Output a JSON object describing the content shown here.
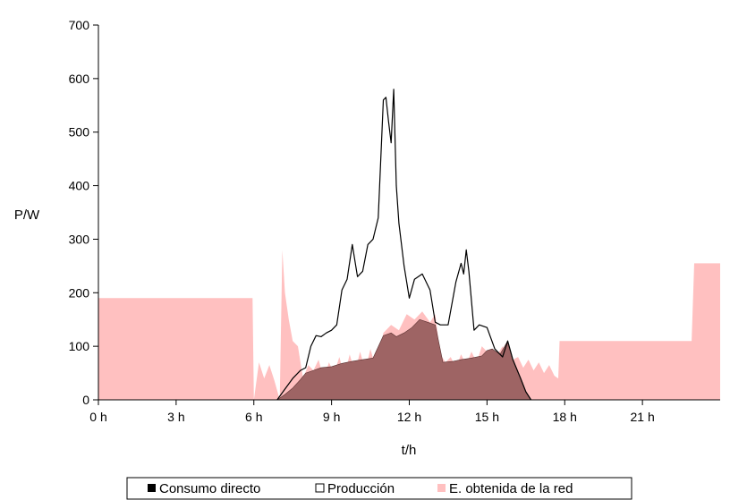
{
  "chart_data": {
    "type": "area",
    "xlabel": "t/h",
    "ylabel": "P/W",
    "xlim": [
      0,
      24
    ],
    "ylim": [
      0,
      700
    ],
    "x_ticks": [
      0,
      3,
      6,
      9,
      12,
      15,
      18,
      21
    ],
    "x_tick_labels": [
      "0 h",
      "3 h",
      "6 h",
      "9 h",
      "12 h",
      "15 h",
      "18 h",
      "21 h"
    ],
    "y_ticks": [
      0,
      100,
      200,
      300,
      400,
      500,
      600,
      700
    ],
    "y_tick_labels": [
      "0",
      "100",
      "200",
      "300",
      "400",
      "500",
      "600",
      "700"
    ],
    "grid": false,
    "legend_position": "bottom",
    "colors": {
      "red": "#ffc0c0",
      "consumo_fill": "#9e6464",
      "produccion_line": "#000000"
    },
    "series": [
      {
        "name": "Consumo directo",
        "kind": "area",
        "x": [
          6.9,
          7.2,
          7.5,
          7.8,
          8.0,
          8.3,
          8.6,
          9.0,
          9.4,
          9.8,
          10.2,
          10.6,
          11.0,
          11.3,
          11.5,
          11.8,
          12.1,
          12.4,
          12.7,
          13.0,
          13.3,
          13.7,
          14.0,
          14.4,
          14.8,
          15.0,
          15.2,
          15.5,
          15.8,
          16.0,
          16.3,
          16.5,
          16.7
        ],
        "values": [
          0,
          10,
          22,
          38,
          50,
          55,
          60,
          62,
          68,
          72,
          75,
          78,
          120,
          125,
          118,
          125,
          135,
          150,
          145,
          140,
          70,
          72,
          75,
          78,
          82,
          92,
          95,
          85,
          110,
          75,
          40,
          15,
          0
        ]
      },
      {
        "name": "Producción",
        "kind": "line",
        "x": [
          6.9,
          7.2,
          7.5,
          7.8,
          8.0,
          8.2,
          8.4,
          8.6,
          8.8,
          9.0,
          9.2,
          9.4,
          9.6,
          9.8,
          10.0,
          10.2,
          10.4,
          10.6,
          10.8,
          11.0,
          11.1,
          11.2,
          11.3,
          11.4,
          11.5,
          11.6,
          11.8,
          12.0,
          12.2,
          12.5,
          12.8,
          13.0,
          13.2,
          13.5,
          13.8,
          14.0,
          14.1,
          14.2,
          14.3,
          14.5,
          14.7,
          15.0,
          15.3,
          15.6,
          15.8,
          16.0,
          16.3,
          16.5,
          16.7
        ],
        "values": [
          0,
          20,
          40,
          55,
          60,
          100,
          120,
          118,
          125,
          130,
          140,
          205,
          225,
          290,
          230,
          240,
          290,
          300,
          340,
          560,
          565,
          520,
          480,
          580,
          400,
          330,
          250,
          190,
          225,
          235,
          205,
          145,
          140,
          140,
          220,
          255,
          235,
          280,
          240,
          130,
          140,
          135,
          95,
          80,
          110,
          75,
          40,
          15,
          0
        ]
      },
      {
        "name": "E. obtenida de la red",
        "kind": "area",
        "x": [
          0,
          5.95,
          6.0,
          6.2,
          6.4,
          6.6,
          6.8,
          7.0,
          7.1,
          7.2,
          7.35,
          7.5,
          7.7,
          7.9,
          8.1,
          8.3,
          8.5,
          8.7,
          8.9,
          9.1,
          9.3,
          9.5,
          9.7,
          9.9,
          10.1,
          10.3,
          10.5,
          10.7,
          10.9,
          11.0,
          11.3,
          11.6,
          11.9,
          12.2,
          12.5,
          12.8,
          13.0,
          13.2,
          13.4,
          13.6,
          13.8,
          14.0,
          14.2,
          14.4,
          14.6,
          14.8,
          15.0,
          15.2,
          15.4,
          15.6,
          15.8,
          16.0,
          16.2,
          16.4,
          16.6,
          16.8,
          17.0,
          17.2,
          17.4,
          17.6,
          17.75,
          17.8,
          22.9,
          23.0,
          24
        ],
        "values": [
          190,
          190,
          0,
          70,
          40,
          65,
          35,
          0,
          280,
          200,
          150,
          110,
          100,
          40,
          65,
          55,
          75,
          40,
          70,
          50,
          80,
          45,
          85,
          50,
          90,
          55,
          95,
          60,
          100,
          125,
          140,
          130,
          160,
          150,
          165,
          145,
          160,
          85,
          70,
          80,
          60,
          85,
          65,
          90,
          70,
          100,
          90,
          95,
          85,
          100,
          80,
          75,
          80,
          60,
          75,
          55,
          70,
          50,
          65,
          45,
          40,
          110,
          110,
          255,
          255
        ]
      }
    ],
    "legend": [
      "Consumo directo",
      "Producción",
      "E. obtenida de la red"
    ]
  }
}
